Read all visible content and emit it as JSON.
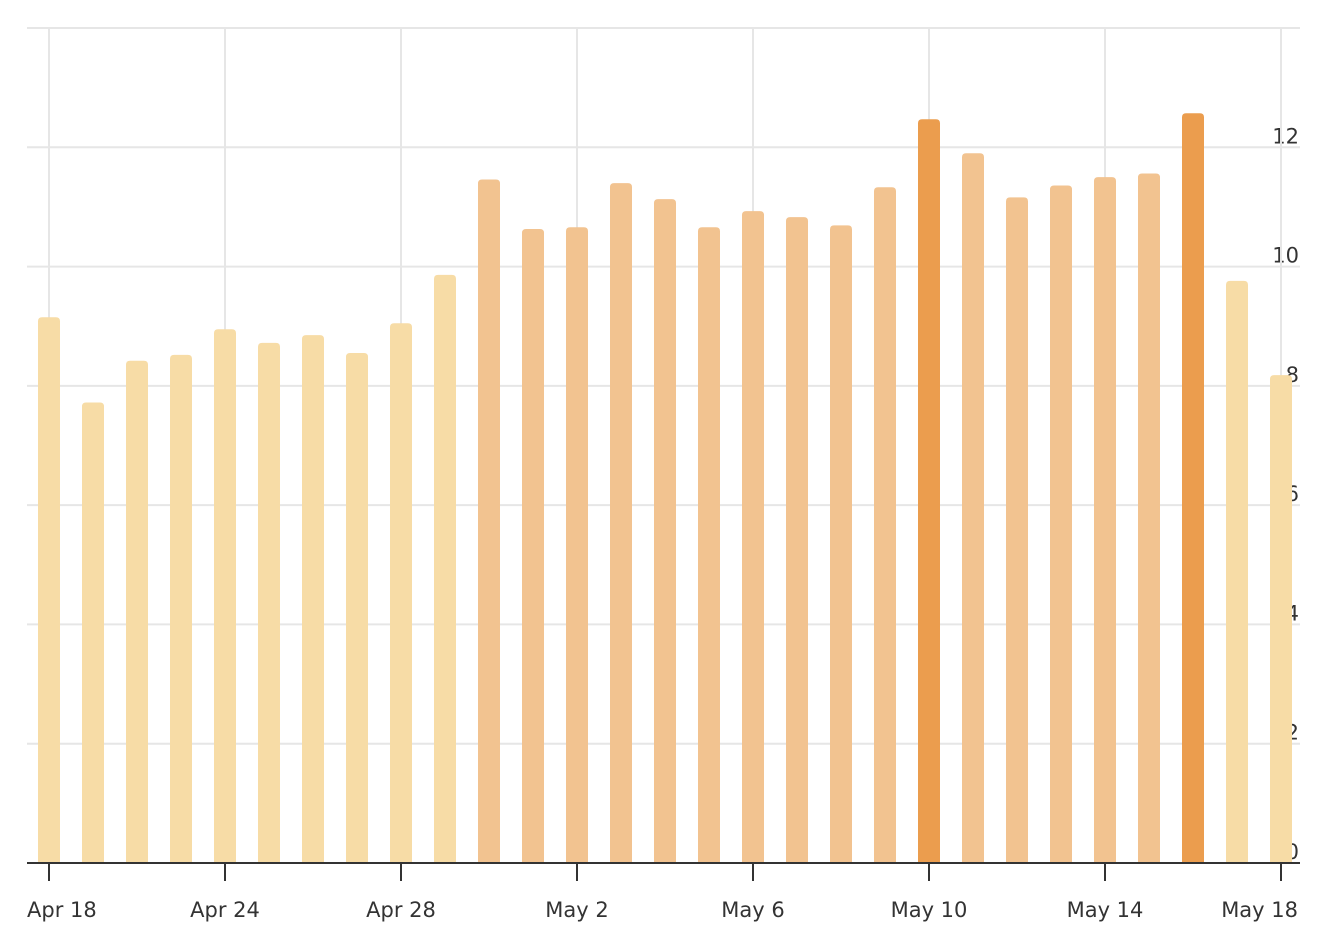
{
  "chart_data": {
    "type": "bar",
    "categories": [
      "Apr 18",
      null,
      null,
      null,
      "Apr 24",
      null,
      null,
      null,
      "Apr 28",
      null,
      null,
      null,
      "May 2",
      null,
      null,
      null,
      "May 6",
      null,
      null,
      null,
      "May 10",
      null,
      null,
      null,
      "May 14",
      null,
      null,
      null,
      "May 18"
    ],
    "values": [
      9.15,
      7.72,
      8.42,
      8.52,
      8.95,
      8.72,
      8.85,
      8.55,
      9.05,
      9.86,
      11.46,
      10.63,
      10.66,
      11.4,
      11.13,
      10.66,
      10.93,
      10.83,
      10.69,
      11.33,
      12.47,
      11.9,
      11.16,
      11.36,
      11.5,
      11.56,
      12.57,
      9.76,
      8.18
    ],
    "colors": [
      "#f7dca6",
      "#f7dca6",
      "#f7dca6",
      "#f7dca6",
      "#f7dca6",
      "#f7dca6",
      "#f7dca6",
      "#f7dca6",
      "#f7dca6",
      "#f7dca6",
      "#f2c390",
      "#f2c390",
      "#f2c390",
      "#f2c390",
      "#f2c390",
      "#f2c390",
      "#f2c390",
      "#f2c390",
      "#f2c390",
      "#f2c390",
      "#eb9d4e",
      "#f2c390",
      "#f2c390",
      "#f2c390",
      "#f2c390",
      "#f2c390",
      "#eb9d4e",
      "#f7dca6",
      "#f7dca6"
    ],
    "ylim": [
      0,
      14
    ],
    "yticks": [
      0,
      2,
      4,
      6,
      8,
      10,
      12
    ],
    "grid": true
  }
}
